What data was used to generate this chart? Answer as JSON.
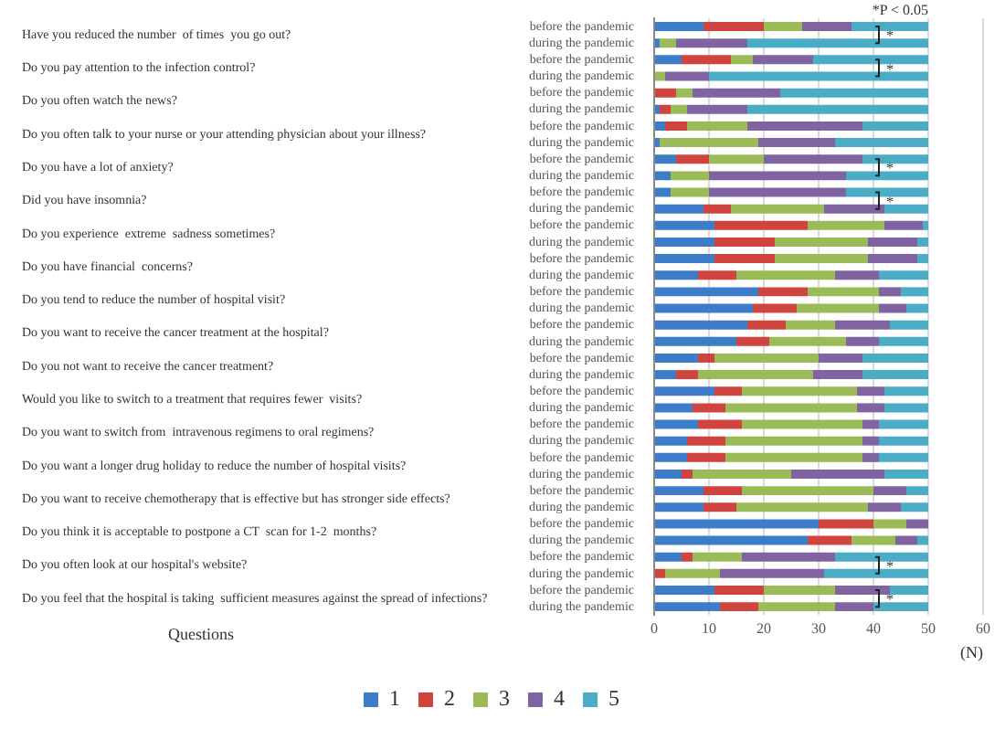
{
  "chart_data": {
    "type": "bar",
    "orientation": "horizontal",
    "stacked": true,
    "xlabel": "(N)",
    "legend": "bottom",
    "grid": "x",
    "xlim": [
      0,
      60
    ],
    "xticks": [
      0,
      10,
      20,
      30,
      40,
      50,
      60
    ],
    "categories": [
      "before the pandemic",
      "during the pandemic",
      "before the pandemic",
      "during the pandemic",
      "before the pandemic",
      "during the pandemic",
      "before the pandemic",
      "during the pandemic",
      "before the pandemic",
      "during the pandemic",
      "before the pandemic",
      "during the pandemic",
      "before the pandemic",
      "during the pandemic",
      "before the pandemic",
      "during the pandemic",
      "before the pandemic",
      "during the pandemic",
      "before the pandemic",
      "during the pandemic",
      "before the pandemic",
      "during the pandemic",
      "before the pandemic",
      "during the pandemic",
      "before the pandemic",
      "during the pandemic",
      "before the pandemic",
      "during the pandemic",
      "before the pandemic",
      "during the pandemic",
      "before the pandemic",
      "during the pandemic",
      "before the pandemic",
      "during the pandemic",
      "before the pandemic",
      "during the pandemic"
    ],
    "series": [
      {
        "name": "1",
        "color": "#3d7cc9",
        "values": [
          9,
          1,
          5,
          0,
          0,
          1,
          2,
          1,
          4,
          3,
          3,
          9,
          11,
          11,
          11,
          8,
          19,
          18,
          17,
          15,
          8,
          4,
          11,
          7,
          8,
          6,
          6,
          5,
          9,
          9,
          30,
          28,
          5,
          0,
          11,
          12
        ]
      },
      {
        "name": "2",
        "color": "#d0443f",
        "values": [
          11,
          0,
          9,
          0,
          4,
          2,
          4,
          0,
          6,
          0,
          0,
          5,
          17,
          11,
          11,
          7,
          9,
          8,
          7,
          6,
          3,
          4,
          5,
          6,
          8,
          7,
          7,
          2,
          7,
          6,
          10,
          8,
          2,
          2,
          9,
          7
        ]
      },
      {
        "name": "3",
        "color": "#9bbb59",
        "values": [
          7,
          3,
          4,
          2,
          3,
          3,
          11,
          18,
          10,
          7,
          7,
          17,
          14,
          17,
          17,
          18,
          13,
          15,
          9,
          14,
          19,
          21,
          21,
          24,
          22,
          25,
          25,
          18,
          24,
          24,
          6,
          8,
          9,
          10,
          13,
          14
        ]
      },
      {
        "name": "4",
        "color": "#8064a2",
        "values": [
          9,
          13,
          11,
          8,
          16,
          11,
          21,
          14,
          18,
          25,
          25,
          11,
          7,
          9,
          9,
          8,
          4,
          5,
          10,
          6,
          8,
          9,
          5,
          5,
          3,
          3,
          3,
          17,
          6,
          6,
          4,
          4,
          17,
          19,
          10,
          7
        ]
      },
      {
        "name": "5",
        "color": "#4bacc6",
        "values": [
          14,
          33,
          21,
          40,
          27,
          33,
          12,
          17,
          12,
          15,
          15,
          8,
          1,
          2,
          2,
          9,
          5,
          4,
          7,
          9,
          12,
          12,
          8,
          8,
          9,
          9,
          9,
          8,
          4,
          5,
          0,
          2,
          17,
          19,
          7,
          10
        ]
      }
    ],
    "annotations": [
      "*P < 0.05",
      "Have you reduced the number  of times  you go out?",
      "*",
      "Do you pay attention to the infection control?",
      "*",
      "Do you often watch the news?",
      "Do you often talk to your nurse or your attending physician about your illness?",
      "Do you have a lot of anxiety?",
      "*",
      "Did you have insomnia?",
      "*",
      "Do you experience  extreme  sadness sometimes?",
      "Do you have financial  concerns?",
      "Do you tend to reduce the number of hospital visit?",
      "Do you want to receive the cancer treatment at the hospital?",
      "Do you not want to receive the cancer treatment?",
      "Would you like to switch to a treatment that requires fewer  visits?",
      "Do you want to switch from  intravenous regimens to oral regimens?",
      "Do you want a longer drug holiday to reduce the number of hospital visits?",
      "Do you want to receive chemotherapy that is effective but has stronger side effects?",
      "Do you think it is acceptable to postpone a CT  scan for 1-2  months?",
      "Do you often look at our hospital's website?",
      "*",
      "Do you feel that the hospital is taking  sufficient measures against the spread of infections?",
      "*",
      "Questions"
    ]
  }
}
